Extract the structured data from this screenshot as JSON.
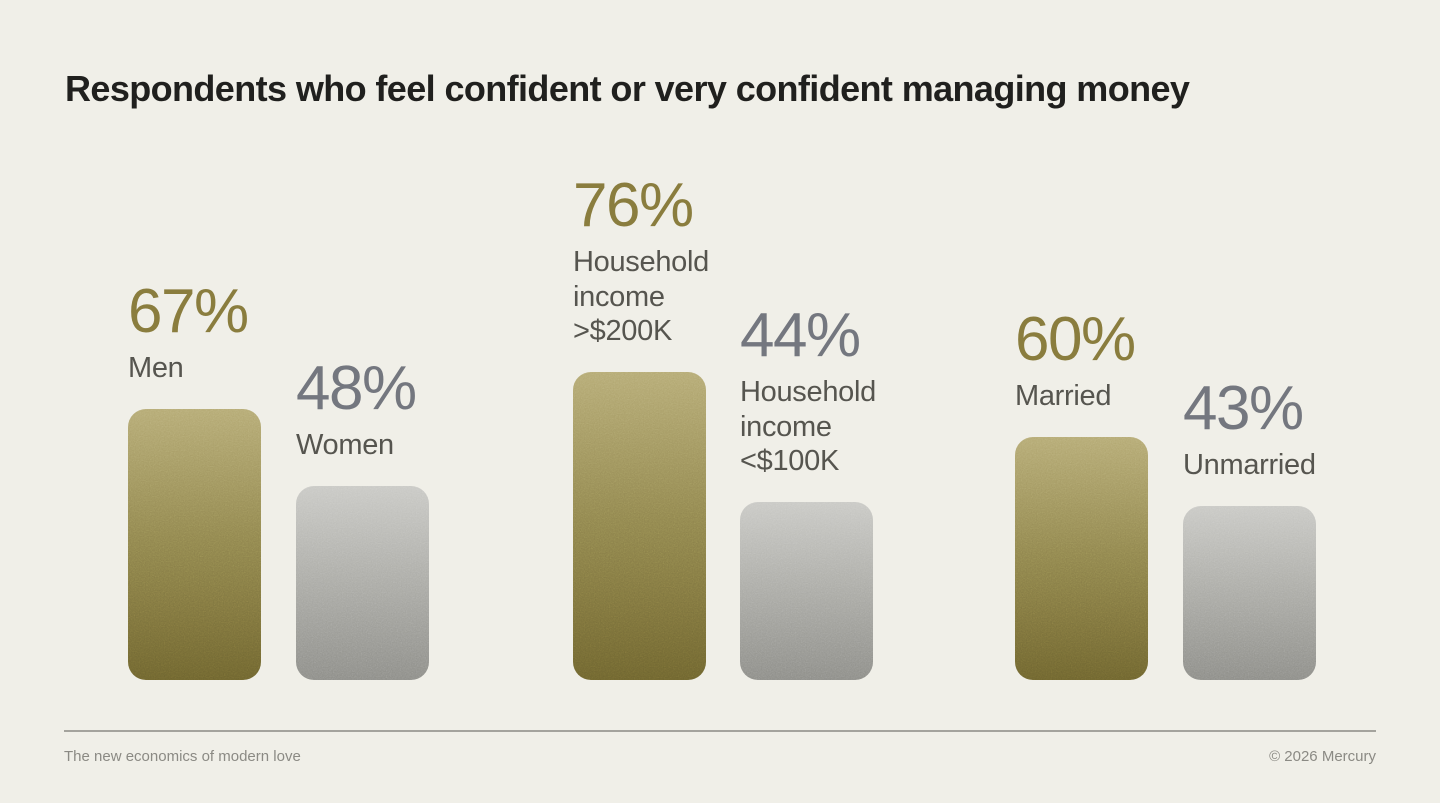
{
  "chart_data": {
    "type": "bar",
    "title": "Respondents who feel confident or very confident managing money",
    "unit": "%",
    "categories": [
      "Men",
      "Women",
      "Household income >$200K",
      "Household income <$100K",
      "Married",
      "Unmarried"
    ],
    "values": [
      67,
      48,
      76,
      44,
      60,
      43
    ],
    "legend": "none",
    "grid": "off",
    "bars": [
      {
        "label": "Men",
        "display": "67%",
        "value": 67,
        "tone": "gold"
      },
      {
        "label": "Women",
        "display": "48%",
        "value": 48,
        "tone": "silver"
      },
      {
        "label": "Household\nincome\n>$200K",
        "display": "76%",
        "value": 76,
        "tone": "gold"
      },
      {
        "label": "Household\nincome\n<$100K",
        "display": "44%",
        "value": 44,
        "tone": "silver"
      },
      {
        "label": "Married",
        "display": "60%",
        "value": 60,
        "tone": "gold"
      },
      {
        "label": "Unmarried",
        "display": "43%",
        "value": 43,
        "tone": "silver"
      }
    ]
  },
  "footer": {
    "source_label": "The new economics of modern love",
    "copyright": "© 2026 Mercury"
  },
  "colors": {
    "background": "#f0efe8",
    "title_text": "#20201e",
    "gold_value_text": "#8a7d3e",
    "silver_value_text": "#74777f",
    "category_text": "#56554f",
    "footer_text": "#8b8a84",
    "divider": "#8b8a84",
    "gold_bar_top": "#b5aa74",
    "gold_bar_bottom": "#6e642f",
    "silver_bar_top": "#c9c9c5",
    "silver_bar_bottom": "#8d8d88"
  }
}
